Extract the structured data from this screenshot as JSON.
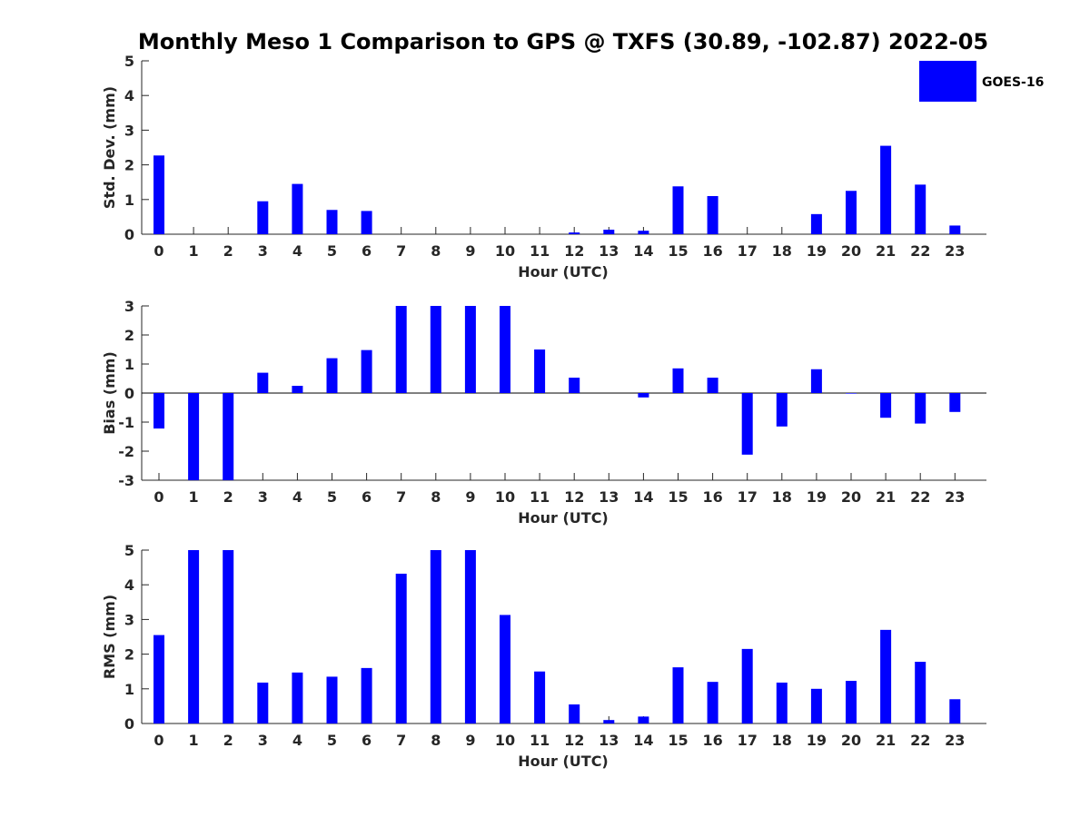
{
  "chart_title": "Monthly Meso 1 Comparison to GPS @ TXFS (30.89, -102.87) 2022-05",
  "legend": {
    "label": "GOES-16",
    "color": "#0000ff"
  },
  "bar_color": "#0000ff",
  "chart_data": [
    {
      "type": "bar",
      "title": "",
      "xlabel": "Hour (UTC)",
      "ylabel": "Std. Dev. (mm)",
      "ylim": [
        0,
        5
      ],
      "yticks": [
        0,
        1,
        2,
        3,
        4,
        5
      ],
      "categories": [
        "0",
        "1",
        "2",
        "3",
        "4",
        "5",
        "6",
        "7",
        "8",
        "9",
        "10",
        "11",
        "12",
        "13",
        "14",
        "15",
        "16",
        "17",
        "18",
        "19",
        "20",
        "21",
        "22",
        "23"
      ],
      "series": [
        {
          "name": "GOES-16",
          "values": [
            2.27,
            0,
            0,
            0.95,
            1.45,
            0.7,
            0.67,
            0,
            0,
            0,
            0,
            0,
            0.05,
            0.13,
            0.1,
            1.38,
            1.1,
            0,
            0,
            0.58,
            1.25,
            2.55,
            1.43,
            0.25
          ]
        }
      ],
      "legend_position": "top-right"
    },
    {
      "type": "bar",
      "title": "",
      "xlabel": "Hour (UTC)",
      "ylabel": "Bias (mm)",
      "ylim": [
        -3,
        3
      ],
      "yticks": [
        -3,
        -2,
        -1,
        0,
        1,
        2,
        3
      ],
      "categories": [
        "0",
        "1",
        "2",
        "3",
        "4",
        "5",
        "6",
        "7",
        "8",
        "9",
        "10",
        "11",
        "12",
        "13",
        "14",
        "15",
        "16",
        "17",
        "18",
        "19",
        "20",
        "21",
        "22",
        "23"
      ],
      "series": [
        {
          "name": "GOES-16",
          "values": [
            -1.22,
            -3,
            -3,
            0.7,
            0.25,
            1.2,
            1.48,
            3,
            3,
            3,
            3,
            1.5,
            0.53,
            0,
            -0.15,
            0.85,
            0.53,
            -2.12,
            -1.15,
            0.82,
            -0.02,
            -0.85,
            -1.05,
            -0.65
          ]
        }
      ]
    },
    {
      "type": "bar",
      "title": "",
      "xlabel": "Hour (UTC)",
      "ylabel": "RMS (mm)",
      "ylim": [
        0,
        5
      ],
      "yticks": [
        0,
        1,
        2,
        3,
        4,
        5
      ],
      "categories": [
        "0",
        "1",
        "2",
        "3",
        "4",
        "5",
        "6",
        "7",
        "8",
        "9",
        "10",
        "11",
        "12",
        "13",
        "14",
        "15",
        "16",
        "17",
        "18",
        "19",
        "20",
        "21",
        "22",
        "23"
      ],
      "series": [
        {
          "name": "GOES-16",
          "values": [
            2.55,
            5,
            5,
            1.18,
            1.47,
            1.35,
            1.6,
            4.32,
            5,
            5,
            3.13,
            1.5,
            0.55,
            0.1,
            0.2,
            1.62,
            1.2,
            2.15,
            1.18,
            1.0,
            1.23,
            2.7,
            1.78,
            0.7
          ]
        }
      ]
    }
  ]
}
